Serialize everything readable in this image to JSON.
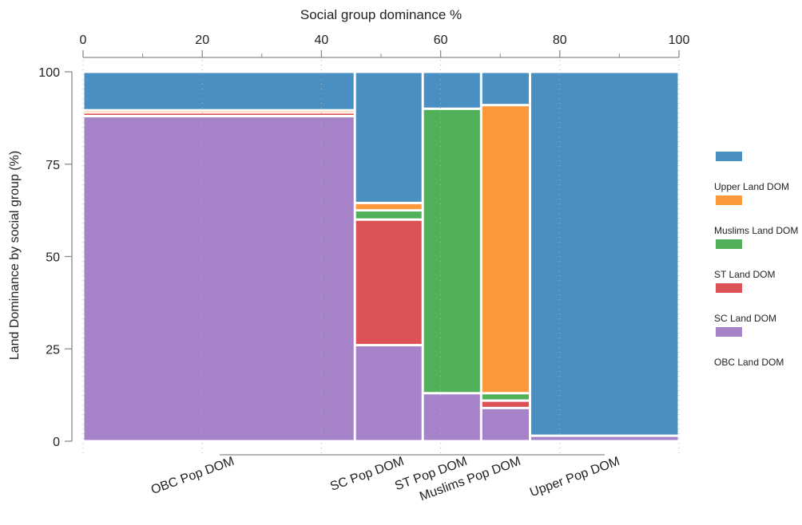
{
  "chart_data": {
    "type": "mosaic",
    "title": "",
    "x_axis_title": "Social group dominance %",
    "y_axis_title": "Land Dominance by social group (%)",
    "x_ticks": [
      "0",
      "20",
      "40",
      "60",
      "80",
      "100"
    ],
    "y_ticks": [
      "0",
      "25",
      "50",
      "75",
      "100"
    ],
    "xlim": [
      0,
      100
    ],
    "ylim": [
      0,
      100
    ],
    "legend_position": "right",
    "series": [
      {
        "name": "OBC Land DOM",
        "color": "#a683c8"
      },
      {
        "name": "SC Land DOM",
        "color": "#dd5257"
      },
      {
        "name": "ST Land DOM",
        "color": "#50b15a"
      },
      {
        "name": "Muslims Land DOM",
        "color": "#fd983c"
      },
      {
        "name": "Upper Land DOM",
        "color": "#4a8fc2"
      }
    ],
    "legend_entries": [
      "",
      "Upper Land DOM",
      "Muslims Land DOM",
      "ST Land DOM",
      "SC Land DOM",
      "OBC Land DOM"
    ],
    "legend_colors": [
      "#4a8fc2",
      "#fd983c",
      "#50b15a",
      "#dd5257",
      "#a683c8",
      null
    ],
    "categories": [
      {
        "label": "OBC Pop DOM",
        "x0": 0,
        "x1": 45.6,
        "values": [
          88,
          1,
          0,
          0.6,
          10.4
        ]
      },
      {
        "label": "SC Pop DOM",
        "x0": 45.6,
        "x1": 57,
        "values": [
          26,
          34,
          2.5,
          2,
          35.5
        ]
      },
      {
        "label": "ST Pop DOM",
        "x0": 57,
        "x1": 66.8,
        "values": [
          13,
          0,
          77,
          0,
          10
        ]
      },
      {
        "label": "Muslims Pop DOM",
        "x0": 66.8,
        "x1": 75,
        "values": [
          9,
          2,
          2,
          78,
          9
        ]
      },
      {
        "label": "Upper Pop DOM",
        "x0": 75,
        "x1": 100,
        "values": [
          1.5,
          0,
          0,
          0,
          98.5
        ]
      }
    ]
  }
}
